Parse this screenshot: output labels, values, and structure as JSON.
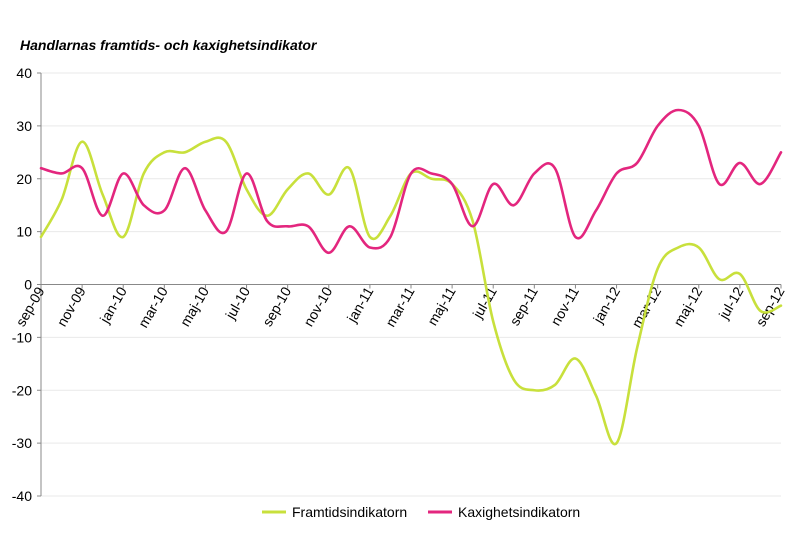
{
  "chart_data": {
    "type": "line",
    "title": "Handlarnas framtids- och kaxighetsindikator",
    "xlabel": "",
    "ylabel": "",
    "ylim": [
      -40,
      40
    ],
    "yticks": [
      40,
      30,
      20,
      10,
      0,
      -10,
      -20,
      -30,
      -40
    ],
    "grid": true,
    "legend_position": "bottom",
    "categories": [
      "sep-09",
      "okt-09",
      "nov-09",
      "dec-09",
      "jan-10",
      "feb-10",
      "mar-10",
      "apr-10",
      "maj-10",
      "jun-10",
      "jul-10",
      "aug-10",
      "sep-10",
      "okt-10",
      "nov-10",
      "dec-10",
      "jan-11",
      "feb-11",
      "mar-11",
      "apr-11",
      "maj-11",
      "jun-11",
      "jul-11",
      "aug-11",
      "sep-11",
      "okt-11",
      "nov-11",
      "dec-11",
      "jan-12",
      "feb-12",
      "mar-12",
      "apr-12",
      "maj-12",
      "jun-12",
      "jul-12",
      "aug-12",
      "sep-12"
    ],
    "tick_labels": [
      "sep-09",
      "nov-09",
      "jan-10",
      "mar-10",
      "maj-10",
      "jul-10",
      "sep-10",
      "nov-10",
      "jan-11",
      "mar-11",
      "maj-11",
      "jul-11",
      "sep-11",
      "nov-11",
      "jan-12",
      "mar-12",
      "maj-12",
      "jul-12",
      "sep-12"
    ],
    "series": [
      {
        "name": "Framtidsindikatorn",
        "color": "#c8e03c",
        "values": [
          9,
          16,
          27,
          17,
          9,
          21,
          25,
          25,
          27,
          27,
          18,
          13,
          18,
          21,
          17,
          22,
          9,
          13,
          21,
          20,
          19,
          12,
          -7,
          -18,
          -20,
          -19,
          -14,
          -21,
          -30,
          -12,
          3,
          7,
          7,
          1,
          2,
          -5,
          -4
        ]
      },
      {
        "name": "Kaxighetsindikatorn",
        "color": "#e3267e",
        "values": [
          22,
          21,
          22,
          13,
          21,
          15,
          14,
          22,
          14,
          10,
          21,
          12,
          11,
          11,
          6,
          11,
          7,
          9,
          21,
          21,
          19,
          11,
          19,
          15,
          21,
          22,
          9,
          14,
          21,
          23,
          30,
          33,
          30,
          19,
          23,
          19,
          25
        ]
      }
    ]
  }
}
